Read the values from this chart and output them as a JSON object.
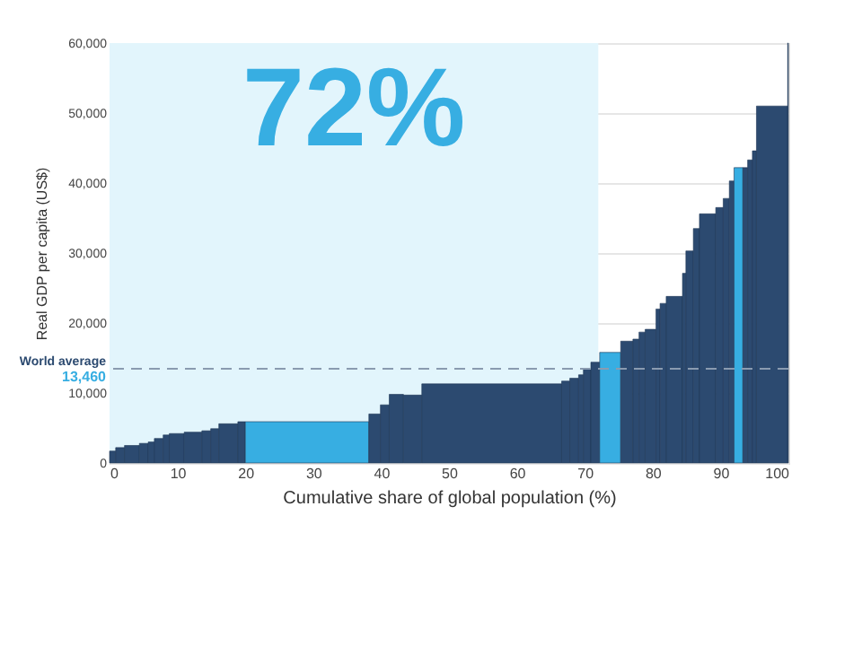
{
  "chart_data": {
    "type": "bar",
    "xlabel": "Cumulative share of global population (%)",
    "ylabel": "Real GDP per capita (US$)",
    "x": [
      0.45,
      1.55,
      3.3,
      5.05,
      6.15,
      7.25,
      8.35,
      9.9,
      12.3,
      14.25,
      15.5,
      17.5,
      19.45,
      29.1,
      39.05,
      40.55,
      42.25,
      44.65,
      56.3,
      67.2,
      68.45,
      69.45,
      70.35,
      71.55,
      73.75,
      76.2,
      77.55,
      78.45,
      79.7,
      80.8,
      81.55,
      83.2,
      84.65,
      85.45,
      86.45,
      88.1,
      89.85,
      90.85,
      91.65,
      92.65,
      93.65,
      94.35,
      95.0,
      97.6,
      99.95
    ],
    "values": [
      1700,
      2200,
      2500,
      2800,
      3000,
      3500,
      4000,
      4200,
      4400,
      4600,
      4900,
      5600,
      5900,
      5900,
      7000,
      8300,
      9800,
      9700,
      11300,
      11700,
      12100,
      12600,
      13400,
      14400,
      15800,
      17400,
      17700,
      18700,
      19100,
      22000,
      22800,
      23800,
      27100,
      30300,
      33500,
      35600,
      36500,
      37800,
      40300,
      42200,
      42200,
      43300,
      44600,
      51000,
      60000
    ],
    "colors": [
      "#2c4a70",
      "#2c4a70",
      "#2c4a70",
      "#2c4a70",
      "#2c4a70",
      "#2c4a70",
      "#2c4a70",
      "#2c4a70",
      "#2c4a70",
      "#2c4a70",
      "#2c4a70",
      "#2c4a70",
      "#2c4a70",
      "#37aee2",
      "#2c4a70",
      "#2c4a70",
      "#2c4a70",
      "#2c4a70",
      "#2c4a70",
      "#2c4a70",
      "#2c4a70",
      "#2c4a70",
      "#2c4a70",
      "#2c4a70",
      "#37aee2",
      "#2c4a70",
      "#2c4a70",
      "#2c4a70",
      "#2c4a70",
      "#2c4a70",
      "#2c4a70",
      "#2c4a70",
      "#2c4a70",
      "#2c4a70",
      "#2c4a70",
      "#2c4a70",
      "#2c4a70",
      "#2c4a70",
      "#2c4a70",
      "#37aee2",
      "#2c4a70",
      "#2c4a70",
      "#2c4a70",
      "#2c4a70",
      "#2c4a70"
    ],
    "xlim": [
      0,
      100
    ],
    "xticks": [
      0,
      10,
      20,
      30,
      40,
      50,
      60,
      70,
      80,
      90,
      100
    ],
    "ylim": [
      0,
      60000
    ],
    "yticks": [
      0,
      {
        "value": 10000,
        "label": "10,000"
      },
      {
        "value": 20000,
        "label": "20,000"
      },
      {
        "value": 30000,
        "label": "30,000"
      },
      {
        "value": 40000,
        "label": "40,000"
      },
      {
        "value": 50000,
        "label": "50,000"
      },
      {
        "value": 60000,
        "label": "60,000"
      }
    ],
    "bands": [
      {
        "axis": "x",
        "from": 0,
        "to": 72,
        "label": "72%",
        "color": "#e2f5fc"
      }
    ],
    "ref_lines": [
      {
        "axis": "y",
        "value": 13460,
        "label": "World average",
        "color": "#8a9bb0",
        "line_style": "dashed"
      }
    ],
    "annotations": [
      "13,460"
    ],
    "grid": "y"
  }
}
